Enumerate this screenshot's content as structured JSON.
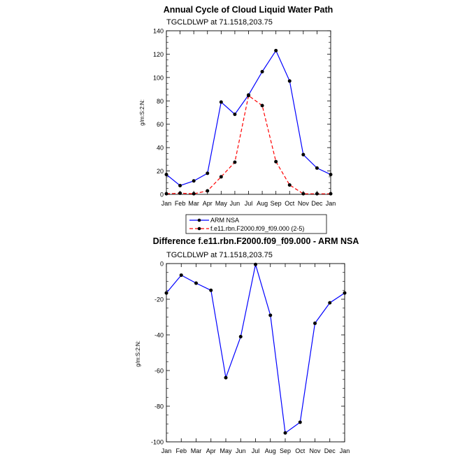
{
  "chart_data": [
    {
      "type": "line",
      "title": "Annual Cycle of Cloud Liquid Water Path",
      "subtitle": "TGCLDLWP at 71.1518,203.75",
      "ylabel": "g/m:S:2:N:",
      "xlabel": "",
      "ylim": [
        0,
        140
      ],
      "yticks": [
        0,
        20,
        40,
        60,
        80,
        100,
        120,
        140
      ],
      "categories": [
        "Jan",
        "Feb",
        "Mar",
        "Apr",
        "May",
        "Jun",
        "Jul",
        "Aug",
        "Sep",
        "Oct",
        "Nov",
        "Dec",
        "Jan"
      ],
      "legend_placement": "below",
      "series": [
        {
          "name": "ARM NSA",
          "color": "#0000ff",
          "dash": "solid",
          "values": [
            17,
            7.5,
            11.5,
            18,
            79,
            68.5,
            85,
            105,
            123,
            97,
            34,
            22.5,
            17
          ]
        },
        {
          "name": "f.e11.rbn.F2000.f09_f09.000 (2-5)",
          "color": "#ff0000",
          "dash": "dashed",
          "values": [
            0.5,
            1,
            0.5,
            3,
            15,
            27.5,
            84.5,
            76,
            28,
            8,
            0.5,
            0.5,
            0.5
          ]
        }
      ]
    },
    {
      "type": "line",
      "title": "Difference f.e11.rbn.F2000.f09_f09.000 - ARM NSA",
      "subtitle": "TGCLDLWP at 71.1518,203.75",
      "ylabel": "g/m:S:2:N:",
      "xlabel": "",
      "ylim": [
        -100,
        0
      ],
      "yticks": [
        -100,
        -80,
        -60,
        -40,
        -20,
        0
      ],
      "categories": [
        "Jan",
        "Feb",
        "Mar",
        "Apr",
        "May",
        "Jun",
        "Jul",
        "Aug",
        "Sep",
        "Oct",
        "Nov",
        "Dec",
        "Jan"
      ],
      "series": [
        {
          "color": "#0000ff",
          "dash": "solid",
          "values": [
            -16.5,
            -6.5,
            -11,
            -15,
            -64,
            -41,
            -0.5,
            -29,
            -95,
            -89,
            -33.5,
            -22,
            -16.5
          ]
        }
      ]
    }
  ]
}
